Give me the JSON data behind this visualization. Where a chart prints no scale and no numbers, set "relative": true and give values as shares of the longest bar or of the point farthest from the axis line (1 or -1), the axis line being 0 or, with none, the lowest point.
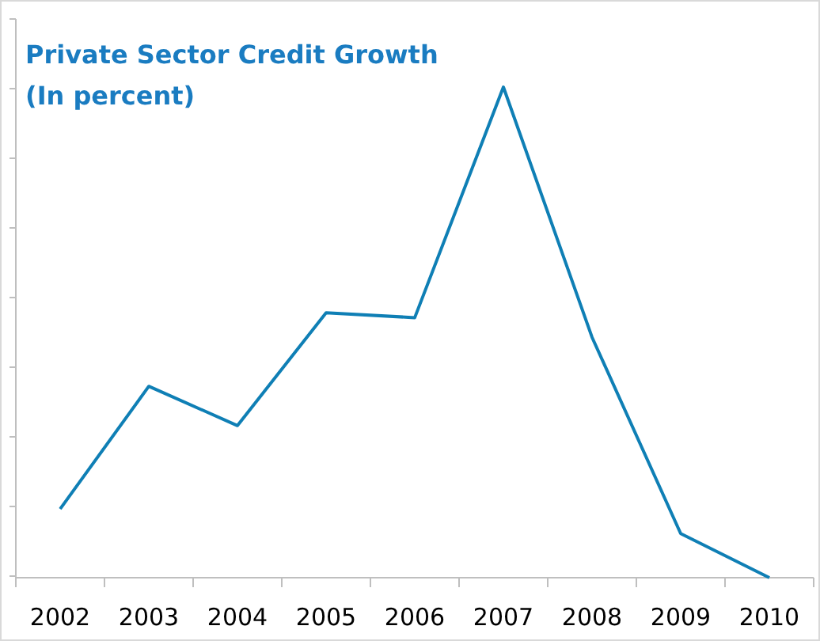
{
  "chart_data": {
    "type": "line",
    "title": "Private Sector Credit Growth",
    "subtitle": "(In percent)",
    "relative": true,
    "categories": [
      "2002",
      "2003",
      "2004",
      "2005",
      "2006",
      "2007",
      "2008",
      "2009",
      "2010"
    ],
    "series": [
      {
        "color": "#0f7fb5",
        "values": [
          0.14,
          0.39,
          0.31,
          0.54,
          0.53,
          1,
          0.49,
          0.09,
          0.0
        ]
      }
    ],
    "marker": "none",
    "line_style": "solid"
  }
}
